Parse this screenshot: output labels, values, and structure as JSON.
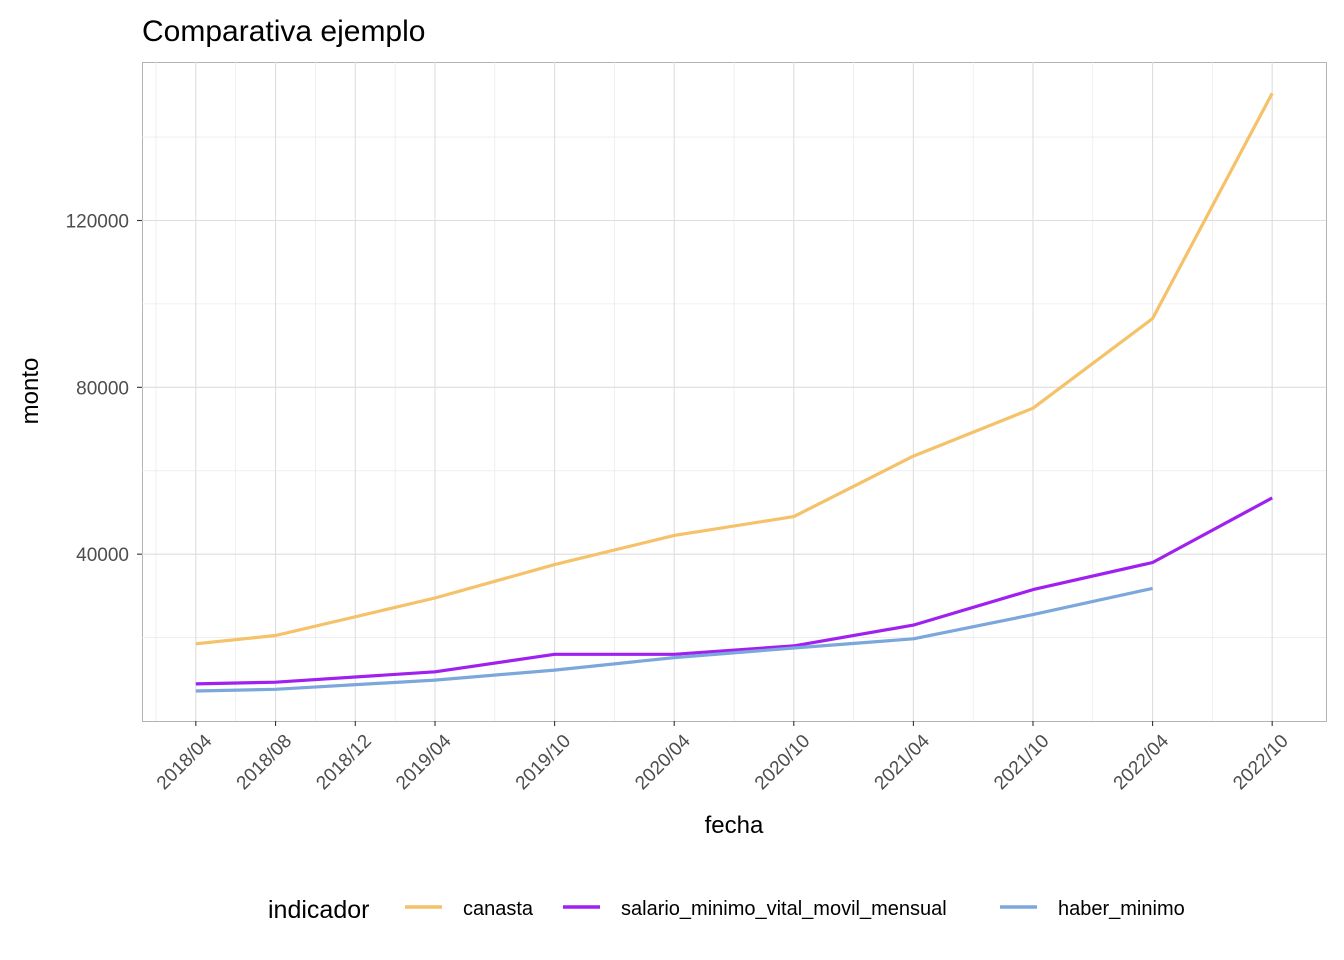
{
  "chart_data": {
    "type": "line",
    "title": "Comparativa ejemplo",
    "xlabel": "fecha",
    "ylabel": "monto",
    "x_ticks": [
      "2018/04",
      "2018/08",
      "2018/12",
      "2019/04",
      "2019/10",
      "2020/04",
      "2020/10",
      "2021/04",
      "2021/10",
      "2022/04",
      "2022/10"
    ],
    "y_ticks": [
      40000,
      80000,
      120000
    ],
    "y_tick_labels": [
      "40000",
      "80000",
      "120000"
    ],
    "ylim": [
      0,
      158000
    ],
    "grid": true,
    "legend": {
      "title": "indicador",
      "position": "bottom"
    },
    "series": [
      {
        "name": "canasta",
        "color": "#F5C169",
        "points": [
          {
            "x": "2018/04",
            "y": 18500
          },
          {
            "x": "2018/08",
            "y": 20500
          },
          {
            "x": "2019/04",
            "y": 29500
          },
          {
            "x": "2019/10",
            "y": 37500
          },
          {
            "x": "2020/04",
            "y": 44500
          },
          {
            "x": "2020/10",
            "y": 49000
          },
          {
            "x": "2021/04",
            "y": 63500
          },
          {
            "x": "2021/10",
            "y": 75000
          },
          {
            "x": "2022/04",
            "y": 96500
          },
          {
            "x": "2022/10",
            "y": 150500
          }
        ]
      },
      {
        "name": "salario_minimo_vital_movil_mensual",
        "color": "#A020F0",
        "points": [
          {
            "x": "2018/04",
            "y": 8900
          },
          {
            "x": "2018/08",
            "y": 9300
          },
          {
            "x": "2019/04",
            "y": 11800
          },
          {
            "x": "2019/10",
            "y": 16000
          },
          {
            "x": "2020/04",
            "y": 16000
          },
          {
            "x": "2020/10",
            "y": 18000
          },
          {
            "x": "2021/04",
            "y": 23000
          },
          {
            "x": "2021/10",
            "y": 31500
          },
          {
            "x": "2022/04",
            "y": 38000
          },
          {
            "x": "2022/10",
            "y": 53500
          }
        ]
      },
      {
        "name": "haber_minimo",
        "color": "#7BA7DB",
        "points": [
          {
            "x": "2018/04",
            "y": 7200
          },
          {
            "x": "2018/08",
            "y": 7600
          },
          {
            "x": "2019/04",
            "y": 9800
          },
          {
            "x": "2019/10",
            "y": 12200
          },
          {
            "x": "2020/04",
            "y": 15200
          },
          {
            "x": "2020/10",
            "y": 17500
          },
          {
            "x": "2021/04",
            "y": 19700
          },
          {
            "x": "2021/10",
            "y": 25500
          },
          {
            "x": "2022/04",
            "y": 31800
          }
        ]
      }
    ]
  }
}
